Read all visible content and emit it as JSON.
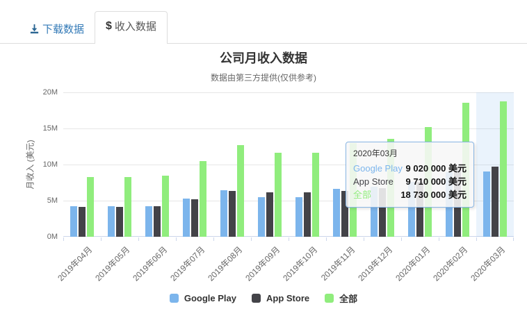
{
  "tabs": {
    "download": {
      "label": "下载数据",
      "icon": "download-icon",
      "color": "#337ab7"
    },
    "revenue": {
      "label": "收入数据",
      "icon_glyph": "$",
      "active": true
    }
  },
  "chart": {
    "title": "公司月收入数据",
    "subtitle": "数据由第三方提供(仅供参考)",
    "y_axis_title": "月收入 (美元)",
    "y_tick_labels": [
      "0M",
      "5M",
      "10M",
      "15M",
      "20M"
    ]
  },
  "chart_data": {
    "type": "bar",
    "categories": [
      "2019年04月",
      "2019年05月",
      "2019年06月",
      "2019年07月",
      "2019年08月",
      "2019年09月",
      "2019年10月",
      "2019年11月",
      "2019年12月",
      "2020年01月",
      "2020年02月",
      "2020年03月"
    ],
    "series": [
      {
        "name": "Google Play",
        "color": "#7cb5ec",
        "values": [
          4200000,
          4200000,
          4250000,
          5300000,
          6400000,
          5500000,
          5500000,
          6600000,
          6900000,
          7600000,
          8950000,
          9020000
        ]
      },
      {
        "name": "App Store",
        "color": "#434348",
        "values": [
          4100000,
          4100000,
          4200000,
          5150000,
          6300000,
          6150000,
          6150000,
          6350000,
          6700000,
          7600000,
          9600000,
          9710000
        ]
      },
      {
        "name": "全部",
        "color": "#90ed7d",
        "values": [
          8300000,
          8300000,
          8450000,
          10450000,
          12700000,
          11650000,
          11650000,
          12950000,
          13600000,
          15200000,
          18550000,
          18730000
        ]
      }
    ],
    "title": "公司月收入数据",
    "subtitle": "数据由第三方提供(仅供参考)",
    "xlabel": "",
    "ylabel": "月收入 (美元)",
    "ylim": [
      0,
      20000000
    ],
    "grid": true,
    "legend_position": "bottom",
    "highlighted_category": "2020年03月"
  },
  "tooltip": {
    "header": "2020年03月",
    "rows": [
      {
        "series": "Google Play",
        "value": "9 020 000 美元"
      },
      {
        "series": "App Store",
        "value": "9 710 000 美元"
      },
      {
        "series": "全部",
        "value": "18 730 000 美元"
      }
    ]
  },
  "colors": {
    "grid_line": "#e6e6e6",
    "axis_line": "#ccd6eb",
    "highlight_band": "rgba(124,181,236,0.16)",
    "tab_active_text": "#555555",
    "tab_inactive_text": "#337ab7"
  }
}
